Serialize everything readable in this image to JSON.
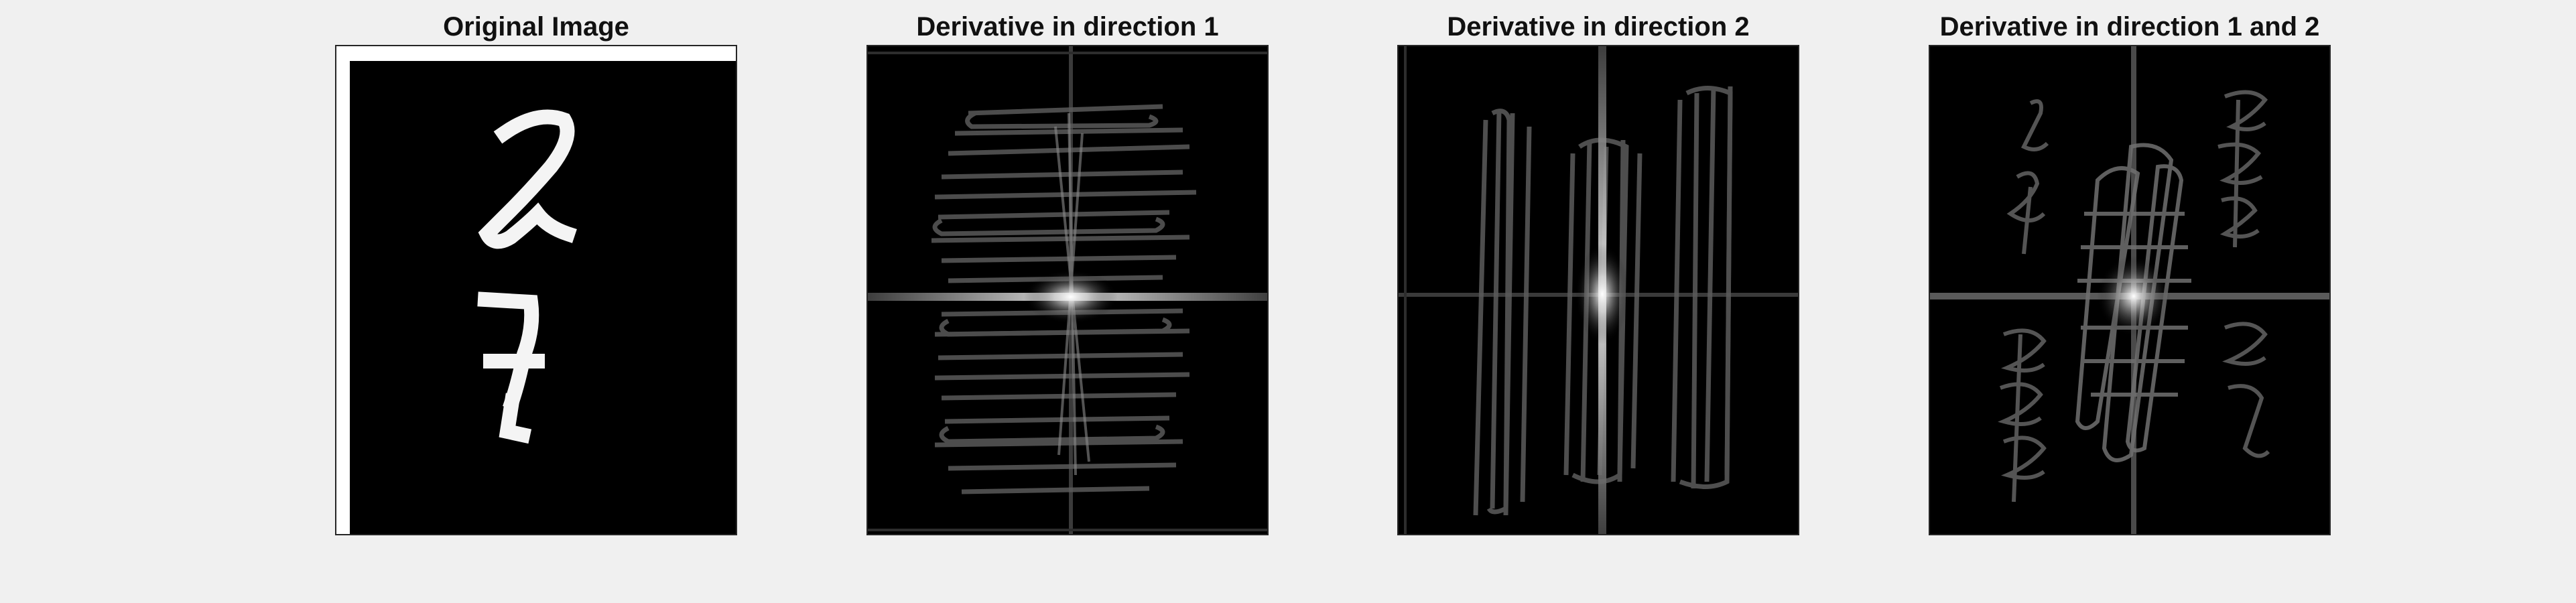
{
  "figure": {
    "background": "#f0f0f0",
    "panels": [
      {
        "title": "Original Image",
        "content": "two handwritten digits on black background with white border at top and left"
      },
      {
        "title": "Derivative in direction 1",
        "content": "horizontal streak pattern with bright center along horizontal axis"
      },
      {
        "title": "Derivative in direction 2",
        "content": "vertical streak pattern with bright center along vertical axis"
      },
      {
        "title": "Derivative in direction 1 and 2",
        "content": "diagonal mixed streaks with bright center and cross axes"
      }
    ]
  }
}
